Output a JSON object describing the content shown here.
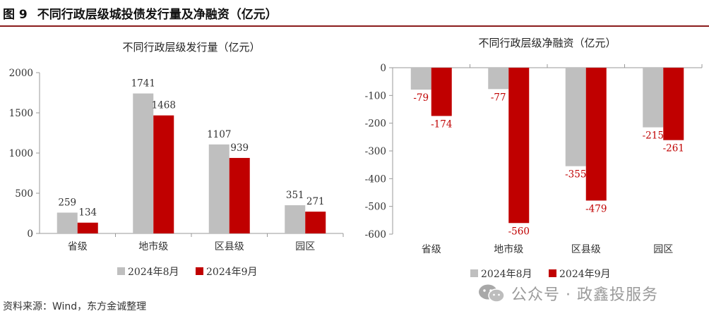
{
  "figure": {
    "number": "图 9",
    "title": "不同行政层级城投债发行量及净融资（亿元）"
  },
  "source": "资料来源：Wind，东方金诚整理",
  "watermark": "公众号 · 政鑫投服务",
  "colors": {
    "series_1": "#bfbfbf",
    "series_2": "#c00000",
    "label_positive": "#333333",
    "label_negative": "#c00000"
  },
  "chart_data": [
    {
      "type": "bar",
      "title": "不同行政层级发行量（亿元）",
      "categories": [
        "省级",
        "地市级",
        "区县级",
        "园区"
      ],
      "series": [
        {
          "name": "2024年8月",
          "values": [
            259,
            1741,
            1107,
            351
          ]
        },
        {
          "name": "2024年9月",
          "values": [
            134,
            1468,
            939,
            271
          ]
        }
      ],
      "ylim": [
        0,
        2000
      ],
      "yticks": [
        0,
        500,
        1000,
        1500,
        2000
      ],
      "legend": "bottom"
    },
    {
      "type": "bar",
      "title": "不同行政层级净融资（亿元）",
      "categories": [
        "省级",
        "地市级",
        "区县级",
        "园区"
      ],
      "series": [
        {
          "name": "2024年8月",
          "values": [
            -79,
            -77,
            -355,
            -215
          ]
        },
        {
          "name": "2024年9月",
          "values": [
            -174,
            -560,
            -479,
            -261
          ]
        }
      ],
      "ylim": [
        -600,
        0
      ],
      "yticks": [
        0,
        -100,
        -200,
        -300,
        -400,
        -500,
        -600
      ],
      "legend": "bottom"
    }
  ]
}
